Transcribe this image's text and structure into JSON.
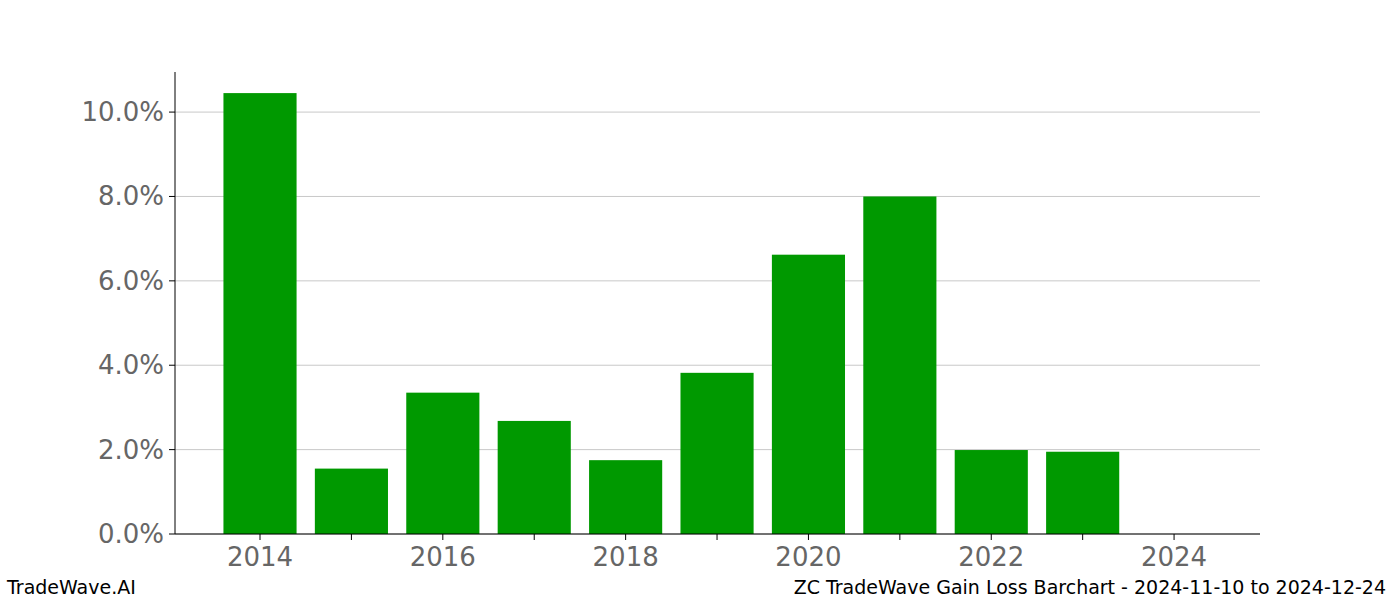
{
  "chart_data": {
    "type": "bar",
    "title": "ZC TradeWave Gain Loss Barchart - 2024-11-10 to 2024-12-24",
    "source": "TradeWave.AI",
    "categories": [
      "2014",
      null,
      "2016",
      null,
      "2018",
      null,
      "2020",
      null,
      "2022",
      null,
      "2024"
    ],
    "values": [
      10.45,
      1.55,
      3.35,
      2.68,
      1.75,
      3.82,
      6.62,
      8.0,
      1.99,
      1.95,
      0
    ],
    "color": "#009900",
    "ylim": [
      0,
      10.95
    ],
    "yticks": [
      {
        "value": 0,
        "label": "0.0%"
      },
      {
        "value": 2,
        "label": "2.0%"
      },
      {
        "value": 4,
        "label": "4.0%"
      },
      {
        "value": 6,
        "label": "6.0%"
      },
      {
        "value": 8,
        "label": "8.0%"
      },
      {
        "value": 10,
        "label": "10.0%"
      }
    ],
    "grid": true
  }
}
